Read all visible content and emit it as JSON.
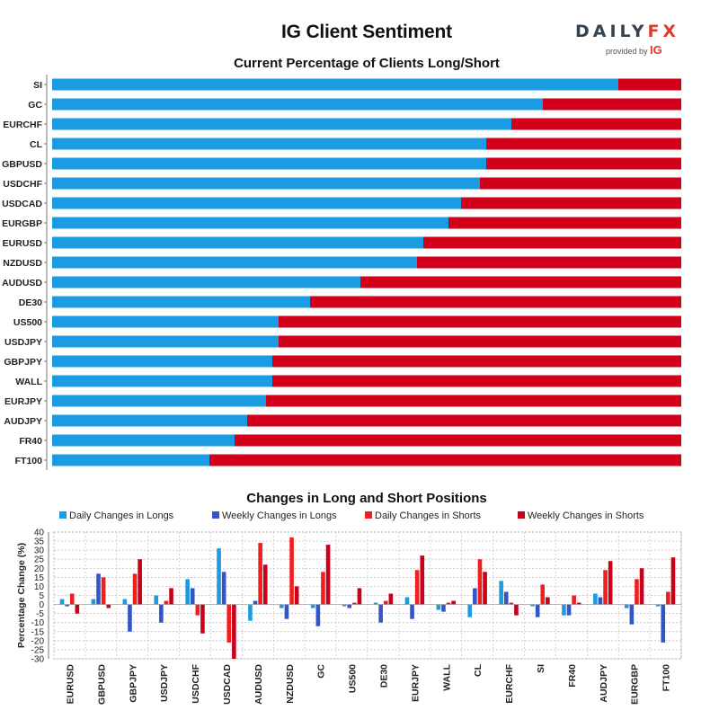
{
  "header": {
    "title": "IG Client Sentiment",
    "logo_word_dark": "DAILY",
    "logo_word_red": "FX",
    "logo_provided": "provided by",
    "logo_ig": "IG"
  },
  "colors": {
    "long": "#1b9ce2",
    "short": "#d2001a",
    "daily_longs": "#1b9ce2",
    "weekly_longs": "#3256c8",
    "daily_shorts": "#f01e1e",
    "weekly_shorts": "#c8001a"
  },
  "legend": {
    "daily_longs": "Daily Changes in Longs",
    "weekly_longs": "Weekly Changes in Longs",
    "daily_shorts": "Daily Changes in Shorts",
    "weekly_shorts": "Weekly Changes in Shorts"
  },
  "chart_data": [
    {
      "type": "bar",
      "orientation": "horizontal",
      "stacked": true,
      "title": "Current Percentage of Clients Long/Short",
      "categories": [
        "SI",
        "GC",
        "EURCHF",
        "CL",
        "GBPUSD",
        "USDCHF",
        "USDCAD",
        "EURGBP",
        "EURUSD",
        "NZDUSD",
        "AUDUSD",
        "DE30",
        "US500",
        "USDJPY",
        "GBPJPY",
        "WALL",
        "EURJPY",
        "AUDJPY",
        "FR40",
        "FT100"
      ],
      "series": [
        {
          "name": "Long",
          "values": [
            90,
            78,
            73,
            69,
            69,
            68,
            65,
            63,
            59,
            58,
            49,
            41,
            36,
            36,
            35,
            35,
            34,
            31,
            29,
            25
          ]
        },
        {
          "name": "Short",
          "values": [
            10,
            22,
            27,
            31,
            31,
            32,
            35,
            37,
            41,
            42,
            51,
            59,
            64,
            64,
            65,
            65,
            66,
            69,
            71,
            75
          ]
        }
      ],
      "xlim": [
        0,
        100
      ]
    },
    {
      "type": "bar",
      "title": "Changes in Long and Short Positions",
      "ylabel": "Percentage Change (%)",
      "ylim": [
        -30,
        40
      ],
      "yticks": [
        -30,
        -25,
        -20,
        -15,
        -10,
        -5,
        0,
        5,
        10,
        15,
        20,
        25,
        30,
        35,
        40
      ],
      "categories": [
        "EURUSD",
        "GBPUSD",
        "GBPJPY",
        "USDJPY",
        "USDCHF",
        "USDCAD",
        "AUDUSD",
        "NZDUSD",
        "GC",
        "US500",
        "DE30",
        "EURJPY",
        "WALL",
        "CL",
        "EURCHF",
        "SI",
        "FR40",
        "AUDJPY",
        "EURGBP",
        "FT100"
      ],
      "series": [
        {
          "name": "Daily Changes in Longs",
          "values": [
            3,
            3,
            3,
            5,
            14,
            31,
            -9,
            -2,
            -2,
            -1,
            1,
            4,
            -3,
            -7,
            13,
            -1,
            -6,
            6,
            -2,
            -1
          ]
        },
        {
          "name": "Weekly Changes in Longs",
          "values": [
            -1,
            17,
            -15,
            -10,
            9,
            18,
            2,
            -8,
            -12,
            -2,
            -10,
            -8,
            -4,
            9,
            7,
            -7,
            -6,
            4,
            -11,
            -21
          ]
        },
        {
          "name": "Daily Changes in Shorts",
          "values": [
            6,
            15,
            17,
            2,
            -6,
            -21,
            34,
            37,
            18,
            1,
            2,
            19,
            1,
            25,
            1,
            11,
            5,
            19,
            14,
            7
          ]
        },
        {
          "name": "Weekly Changes in Shorts",
          "values": [
            -5,
            -2,
            25,
            9,
            -16,
            -30,
            22,
            10,
            33,
            9,
            6,
            27,
            2,
            18,
            -6,
            4,
            1,
            24,
            20,
            26
          ]
        }
      ]
    }
  ]
}
